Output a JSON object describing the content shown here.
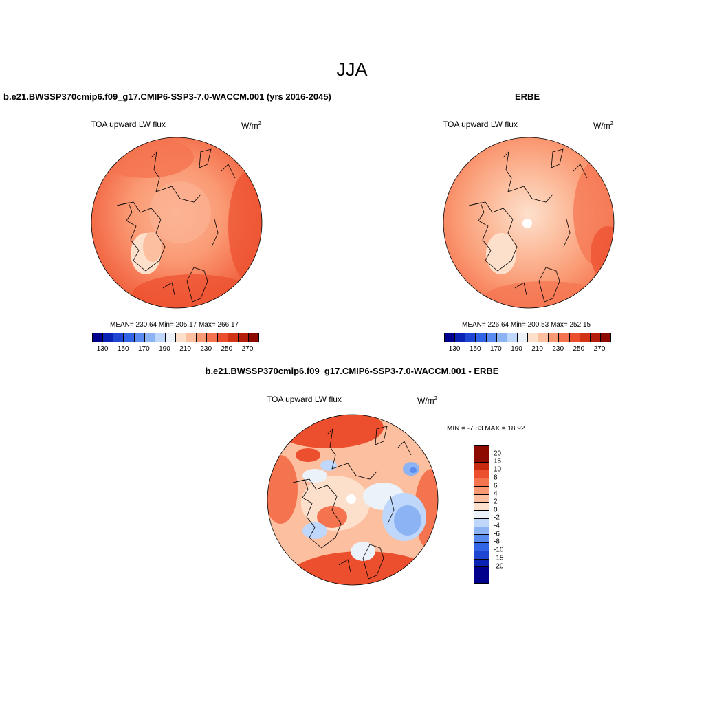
{
  "title": "JJA",
  "panels": [
    {
      "case": "b.e21.BWSSP370cmip6.f09_g17.CMIP6-SSP3-7.0-WACCM.001 (yrs 2016-2045)",
      "variable": "TOA upward LW flux",
      "units": "W/m",
      "units_sup": "2",
      "stats": "MEAN= 230.64  Min= 205.17  Max= 266.17",
      "has_pole_hole": false
    },
    {
      "case": "ERBE",
      "variable": "TOA upward LW flux",
      "units": "W/m",
      "units_sup": "2",
      "stats": "MEAN= 226.64  Min= 200.53  Max= 252.15",
      "has_pole_hole": true
    }
  ],
  "colorbar_main": {
    "colors": [
      "#00008c",
      "#0a23b4",
      "#1e46d2",
      "#3264e6",
      "#5a8cf0",
      "#8cb4f5",
      "#bed7fa",
      "#ebf2fa",
      "#fde0cc",
      "#fcbfa0",
      "#fa9a74",
      "#f57450",
      "#ec4f2d",
      "#d23314",
      "#b41e0a",
      "#8c0a00"
    ],
    "labels": [
      "130",
      "150",
      "170",
      "190",
      "210",
      "230",
      "250",
      "270"
    ]
  },
  "difference": {
    "case": "b.e21.BWSSP370cmip6.f09_g17.CMIP6-SSP3-7.0-WACCM.001 - ERBE",
    "variable": "TOA upward LW flux",
    "units": "W/m",
    "units_sup": "2",
    "stats": "MIN =  -7.83 MAX =  18.92",
    "colorbar": {
      "colors": [
        "#8c0a00",
        "#c82a10",
        "#ec4f2d",
        "#f57450",
        "#fa9a74",
        "#fcbfa0",
        "#fde0cc",
        "#ebf2fa",
        "#bed7fa",
        "#8cb4f5",
        "#5a8cf0",
        "#3264e6",
        "#1e46d2",
        "#0a23b4",
        "#00008c"
      ],
      "labels": [
        "20",
        "15",
        "10",
        "8",
        "6",
        "4",
        "2",
        "0",
        "-2",
        "-4",
        "-6",
        "-8",
        "-10",
        "-15",
        "-20"
      ]
    }
  }
}
